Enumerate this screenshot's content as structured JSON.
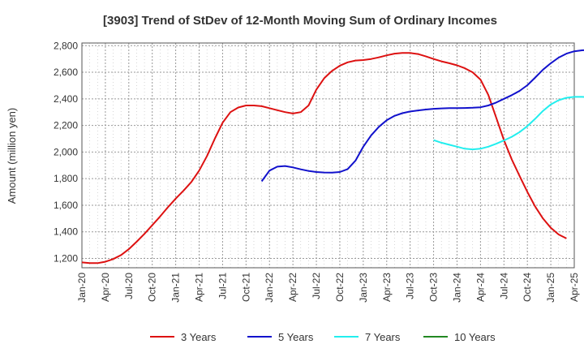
{
  "chart_data": {
    "type": "line",
    "title": "[3903]  Trend of StDev of 12-Month Moving Sum of Ordinary Incomes",
    "xlabel": "",
    "ylabel": "Amount (million yen)",
    "ylim": [
      1130,
      2820
    ],
    "yticks": [
      1200,
      1400,
      1600,
      1800,
      2000,
      2200,
      2400,
      2600,
      2800
    ],
    "ytick_labels": [
      "1,200",
      "1,400",
      "1,600",
      "1,800",
      "2,000",
      "2,200",
      "2,400",
      "2,600",
      "2,800"
    ],
    "xticks": [
      "Jan-20",
      "Apr-20",
      "Jul-20",
      "Oct-20",
      "Jan-21",
      "Apr-21",
      "Jul-21",
      "Oct-21",
      "Jan-22",
      "Apr-22",
      "Jul-22",
      "Oct-22",
      "Jan-23",
      "Apr-23",
      "Jul-23",
      "Oct-23",
      "Jan-24",
      "Apr-24",
      "Jul-24",
      "Oct-24",
      "Jan-25",
      "Apr-25"
    ],
    "x_start": "2020-01",
    "x_end": "2025-04",
    "grid": true,
    "legend_position": "bottom",
    "series": [
      {
        "name": "3 Years",
        "color": "#dd1111",
        "points": [
          [
            "2020-01",
            1170
          ],
          [
            "2020-02",
            1165
          ],
          [
            "2020-03",
            1165
          ],
          [
            "2020-04",
            1175
          ],
          [
            "2020-05",
            1195
          ],
          [
            "2020-06",
            1225
          ],
          [
            "2020-07",
            1270
          ],
          [
            "2020-08",
            1325
          ],
          [
            "2020-09",
            1385
          ],
          [
            "2020-10",
            1450
          ],
          [
            "2020-11",
            1515
          ],
          [
            "2020-12",
            1585
          ],
          [
            "2021-01",
            1650
          ],
          [
            "2021-02",
            1710
          ],
          [
            "2021-03",
            1775
          ],
          [
            "2021-04",
            1860
          ],
          [
            "2021-05",
            1970
          ],
          [
            "2021-06",
            2100
          ],
          [
            "2021-07",
            2220
          ],
          [
            "2021-08",
            2300
          ],
          [
            "2021-09",
            2335
          ],
          [
            "2021-10",
            2350
          ],
          [
            "2021-11",
            2350
          ],
          [
            "2021-12",
            2345
          ],
          [
            "2022-01",
            2330
          ],
          [
            "2022-02",
            2315
          ],
          [
            "2022-03",
            2300
          ],
          [
            "2022-04",
            2290
          ],
          [
            "2022-05",
            2300
          ],
          [
            "2022-06",
            2350
          ],
          [
            "2022-07",
            2470
          ],
          [
            "2022-08",
            2555
          ],
          [
            "2022-09",
            2610
          ],
          [
            "2022-10",
            2650
          ],
          [
            "2022-11",
            2675
          ],
          [
            "2022-12",
            2688
          ],
          [
            "2023-01",
            2692
          ],
          [
            "2023-02",
            2700
          ],
          [
            "2023-03",
            2712
          ],
          [
            "2023-04",
            2727
          ],
          [
            "2023-05",
            2740
          ],
          [
            "2023-06",
            2745
          ],
          [
            "2023-07",
            2745
          ],
          [
            "2023-08",
            2737
          ],
          [
            "2023-09",
            2720
          ],
          [
            "2023-10",
            2700
          ],
          [
            "2023-11",
            2682
          ],
          [
            "2023-12",
            2668
          ],
          [
            "2024-01",
            2652
          ],
          [
            "2024-02",
            2630
          ],
          [
            "2024-03",
            2600
          ],
          [
            "2024-04",
            2545
          ],
          [
            "2024-05",
            2430
          ],
          [
            "2024-06",
            2260
          ],
          [
            "2024-07",
            2090
          ],
          [
            "2024-08",
            1945
          ],
          [
            "2024-09",
            1820
          ],
          [
            "2024-10",
            1700
          ],
          [
            "2024-11",
            1590
          ],
          [
            "2024-12",
            1500
          ],
          [
            "2025-01",
            1430
          ],
          [
            "2025-02",
            1380
          ],
          [
            "2025-03",
            1350
          ]
        ]
      },
      {
        "name": "5 Years",
        "color": "#1111cc",
        "points": [
          [
            "2021-12",
            1780
          ],
          [
            "2022-01",
            1860
          ],
          [
            "2022-02",
            1890
          ],
          [
            "2022-03",
            1895
          ],
          [
            "2022-04",
            1885
          ],
          [
            "2022-05",
            1870
          ],
          [
            "2022-06",
            1858
          ],
          [
            "2022-07",
            1850
          ],
          [
            "2022-08",
            1846
          ],
          [
            "2022-09",
            1845
          ],
          [
            "2022-10",
            1850
          ],
          [
            "2022-11",
            1872
          ],
          [
            "2022-12",
            1935
          ],
          [
            "2023-01",
            2040
          ],
          [
            "2023-02",
            2125
          ],
          [
            "2023-03",
            2190
          ],
          [
            "2023-04",
            2240
          ],
          [
            "2023-05",
            2272
          ],
          [
            "2023-06",
            2292
          ],
          [
            "2023-07",
            2305
          ],
          [
            "2023-08",
            2313
          ],
          [
            "2023-09",
            2320
          ],
          [
            "2023-10",
            2325
          ],
          [
            "2023-11",
            2328
          ],
          [
            "2023-12",
            2330
          ],
          [
            "2024-01",
            2330
          ],
          [
            "2024-02",
            2331
          ],
          [
            "2024-03",
            2333
          ],
          [
            "2024-04",
            2337
          ],
          [
            "2024-05",
            2350
          ],
          [
            "2024-06",
            2372
          ],
          [
            "2024-07",
            2400
          ],
          [
            "2024-08",
            2428
          ],
          [
            "2024-09",
            2460
          ],
          [
            "2024-10",
            2503
          ],
          [
            "2024-11",
            2560
          ],
          [
            "2024-12",
            2620
          ],
          [
            "2025-01",
            2668
          ],
          [
            "2025-02",
            2710
          ],
          [
            "2025-03",
            2740
          ],
          [
            "2025-04",
            2758
          ],
          [
            "2025-05",
            2765
          ],
          [
            "2025-06",
            2768
          ],
          [
            "2025-07",
            2770
          ],
          [
            "2025-08",
            2772
          ],
          [
            "2025-09",
            2773
          ]
        ]
      },
      {
        "name": "7 Years",
        "color": "#22eeee",
        "points": [
          [
            "2023-10",
            2090
          ],
          [
            "2023-11",
            2070
          ],
          [
            "2023-12",
            2055
          ],
          [
            "2024-01",
            2040
          ],
          [
            "2024-02",
            2025
          ],
          [
            "2024-03",
            2020
          ],
          [
            "2024-04",
            2025
          ],
          [
            "2024-05",
            2040
          ],
          [
            "2024-06",
            2062
          ],
          [
            "2024-07",
            2087
          ],
          [
            "2024-08",
            2115
          ],
          [
            "2024-09",
            2150
          ],
          [
            "2024-10",
            2195
          ],
          [
            "2024-11",
            2250
          ],
          [
            "2024-12",
            2310
          ],
          [
            "2025-01",
            2358
          ],
          [
            "2025-02",
            2390
          ],
          [
            "2025-03",
            2408
          ],
          [
            "2025-04",
            2415
          ],
          [
            "2025-05",
            2415
          ],
          [
            "2025-06",
            2413
          ],
          [
            "2025-07",
            2410
          ],
          [
            "2025-08",
            2410
          ]
        ]
      },
      {
        "name": "10 Years",
        "color": "#228822",
        "points": []
      }
    ]
  }
}
